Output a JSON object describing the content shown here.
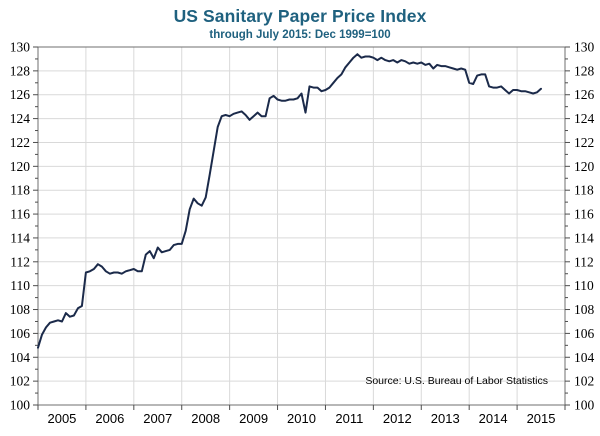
{
  "chart_data": {
    "type": "line",
    "title": "US Sanitary Paper Price Index",
    "subtitle": "through July 2015: Dec 1999=100",
    "source": "Source: U.S. Bureau of Labor Statistics",
    "frequency": "monthly",
    "x_start": "Jan 2005",
    "x_end": "Jul 2015",
    "x_tick_labels": [
      "2005",
      "2006",
      "2007",
      "2008",
      "2009",
      "2010",
      "2011",
      "2012",
      "2013",
      "2014",
      "2015"
    ],
    "ylim": [
      100,
      130
    ],
    "y_tick_step": 2,
    "y_minor_tick_step": 1,
    "grid": true,
    "legend": false,
    "y_axis_labels_both_sides": true,
    "series": [
      {
        "name": "Sanitary paper price index (Dec 1999=100)",
        "values": [
          104.8,
          105.9,
          106.5,
          106.9,
          107.0,
          107.1,
          107.0,
          107.7,
          107.4,
          107.5,
          108.1,
          108.3,
          111.1,
          111.2,
          111.4,
          111.8,
          111.6,
          111.2,
          111.0,
          111.1,
          111.1,
          111.0,
          111.2,
          111.3,
          111.4,
          111.2,
          111.2,
          112.6,
          112.9,
          112.3,
          113.2,
          112.8,
          112.9,
          113.0,
          113.4,
          113.5,
          113.5,
          114.6,
          116.4,
          117.3,
          116.9,
          116.7,
          117.4,
          119.3,
          121.3,
          123.3,
          124.2,
          124.3,
          124.2,
          124.4,
          124.5,
          124.6,
          124.3,
          123.9,
          124.2,
          124.5,
          124.2,
          124.2,
          125.7,
          125.9,
          125.6,
          125.5,
          125.5,
          125.6,
          125.6,
          125.7,
          126.1,
          124.5,
          126.7,
          126.6,
          126.6,
          126.3,
          126.4,
          126.6,
          127.0,
          127.4,
          127.7,
          128.3,
          128.7,
          129.1,
          129.4,
          129.1,
          129.2,
          129.2,
          129.1,
          128.9,
          129.1,
          128.9,
          128.8,
          128.9,
          128.7,
          128.9,
          128.8,
          128.6,
          128.7,
          128.6,
          128.7,
          128.5,
          128.6,
          128.2,
          128.5,
          128.4,
          128.4,
          128.3,
          128.2,
          128.1,
          128.2,
          128.1,
          127.0,
          126.9,
          127.6,
          127.7,
          127.7,
          126.7,
          126.6,
          126.6,
          126.7,
          126.4,
          126.1,
          126.4,
          126.4,
          126.3,
          126.3,
          126.2,
          126.1,
          126.2,
          126.5
        ]
      }
    ],
    "colors": {
      "line": "#1b2a4a",
      "title": "#1f617f",
      "grid": "#d9d9d9",
      "axis": "#6f6f6f",
      "tick": "#4d4d4d",
      "label": "#000000"
    }
  }
}
